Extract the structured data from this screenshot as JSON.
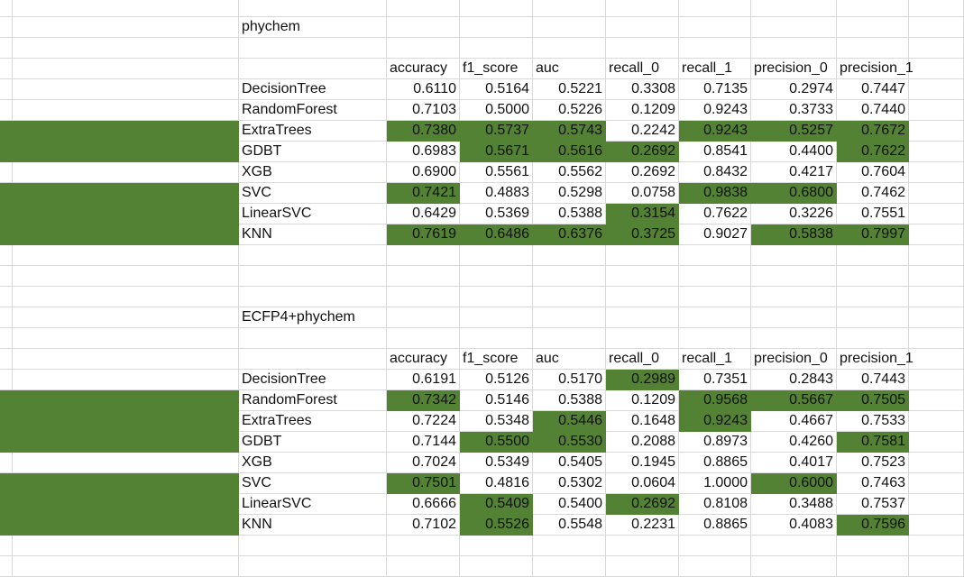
{
  "highlight_color": "#548235",
  "gridline_color": "#d9d9d9",
  "sections": [
    {
      "title": "phychem",
      "columns": [
        "accuracy",
        "f1_score",
        "auc",
        "recall_0",
        "recall_1",
        "precision_0",
        "precision_1"
      ],
      "rows": [
        {
          "name": "DecisionTree",
          "values": [
            "0.6110",
            "0.5164",
            "0.5221",
            "0.3308",
            "0.7135",
            "0.2974",
            "0.7447"
          ],
          "row_highlight": false,
          "highlights": [
            false,
            false,
            false,
            false,
            false,
            false,
            false
          ]
        },
        {
          "name": "RandomForest",
          "values": [
            "0.7103",
            "0.5000",
            "0.5226",
            "0.1209",
            "0.9243",
            "0.3733",
            "0.7440"
          ],
          "row_highlight": false,
          "highlights": [
            false,
            false,
            false,
            false,
            false,
            false,
            false
          ]
        },
        {
          "name": "ExtraTrees",
          "values": [
            "0.7380",
            "0.5737",
            "0.5743",
            "0.2242",
            "0.9243",
            "0.5257",
            "0.7672"
          ],
          "row_highlight": true,
          "highlights": [
            true,
            true,
            true,
            false,
            true,
            true,
            true
          ]
        },
        {
          "name": "GDBT",
          "values": [
            "0.6983",
            "0.5671",
            "0.5616",
            "0.2692",
            "0.8541",
            "0.4400",
            "0.7622"
          ],
          "row_highlight": true,
          "highlights": [
            false,
            true,
            true,
            true,
            false,
            false,
            true
          ]
        },
        {
          "name": "XGB",
          "values": [
            "0.6900",
            "0.5561",
            "0.5562",
            "0.2692",
            "0.8432",
            "0.4217",
            "0.7604"
          ],
          "row_highlight": false,
          "highlights": [
            false,
            false,
            false,
            false,
            false,
            false,
            false
          ]
        },
        {
          "name": "SVC",
          "values": [
            "0.7421",
            "0.4883",
            "0.5298",
            "0.0758",
            "0.9838",
            "0.6800",
            "0.7462"
          ],
          "row_highlight": true,
          "highlights": [
            true,
            false,
            false,
            false,
            true,
            true,
            false
          ]
        },
        {
          "name": "LinearSVC",
          "values": [
            "0.6429",
            "0.5369",
            "0.5388",
            "0.3154",
            "0.7622",
            "0.3226",
            "0.7551"
          ],
          "row_highlight": true,
          "highlights": [
            false,
            false,
            false,
            true,
            false,
            false,
            false
          ]
        },
        {
          "name": "KNN",
          "values": [
            "0.7619",
            "0.6486",
            "0.6376",
            "0.3725",
            "0.9027",
            "0.5838",
            "0.7997"
          ],
          "row_highlight": true,
          "highlights": [
            true,
            true,
            true,
            true,
            false,
            true,
            true
          ]
        }
      ]
    },
    {
      "title": "ECFP4+phychem",
      "columns": [
        "accuracy",
        "f1_score",
        "auc",
        "recall_0",
        "recall_1",
        "precision_0",
        "precision_1"
      ],
      "rows": [
        {
          "name": "DecisionTree",
          "values": [
            "0.6191",
            "0.5126",
            "0.5170",
            "0.2989",
            "0.7351",
            "0.2843",
            "0.7443"
          ],
          "row_highlight": false,
          "highlights": [
            false,
            false,
            false,
            true,
            false,
            false,
            false
          ]
        },
        {
          "name": "RandomForest",
          "values": [
            "0.7342",
            "0.5146",
            "0.5388",
            "0.1209",
            "0.9568",
            "0.5667",
            "0.7505"
          ],
          "row_highlight": true,
          "highlights": [
            true,
            false,
            false,
            false,
            true,
            true,
            true
          ]
        },
        {
          "name": "ExtraTrees",
          "values": [
            "0.7224",
            "0.5348",
            "0.5446",
            "0.1648",
            "0.9243",
            "0.4667",
            "0.7533"
          ],
          "row_highlight": true,
          "highlights": [
            false,
            false,
            true,
            false,
            true,
            false,
            false
          ]
        },
        {
          "name": "GDBT",
          "values": [
            "0.7144",
            "0.5500",
            "0.5530",
            "0.2088",
            "0.8973",
            "0.4260",
            "0.7581"
          ],
          "row_highlight": true,
          "highlights": [
            false,
            true,
            true,
            false,
            false,
            false,
            true
          ]
        },
        {
          "name": "XGB",
          "values": [
            "0.7024",
            "0.5349",
            "0.5405",
            "0.1945",
            "0.8865",
            "0.4017",
            "0.7523"
          ],
          "row_highlight": false,
          "highlights": [
            false,
            false,
            false,
            false,
            false,
            false,
            false
          ]
        },
        {
          "name": "SVC",
          "values": [
            "0.7501",
            "0.4816",
            "0.5302",
            "0.0604",
            "1.0000",
            "0.6000",
            "0.7463"
          ],
          "row_highlight": true,
          "highlights": [
            true,
            false,
            false,
            false,
            false,
            true,
            false
          ]
        },
        {
          "name": "LinearSVC",
          "values": [
            "0.6666",
            "0.5409",
            "0.5400",
            "0.2692",
            "0.8108",
            "0.3488",
            "0.7537"
          ],
          "row_highlight": true,
          "highlights": [
            false,
            true,
            false,
            true,
            false,
            false,
            false
          ]
        },
        {
          "name": "KNN",
          "values": [
            "0.7102",
            "0.5526",
            "0.5548",
            "0.2231",
            "0.8865",
            "0.4083",
            "0.7596"
          ],
          "row_highlight": true,
          "highlights": [
            false,
            true,
            false,
            false,
            false,
            false,
            true
          ]
        }
      ]
    }
  ]
}
